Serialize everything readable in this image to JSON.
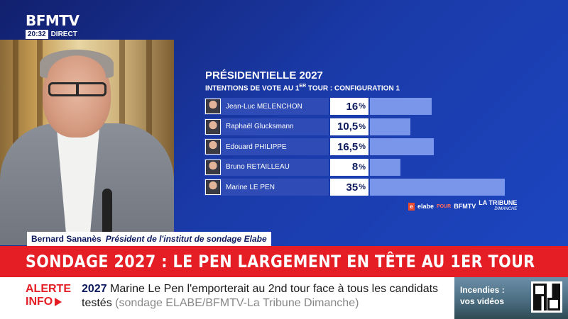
{
  "logo": {
    "brand": "BFMTV",
    "time": "20:32",
    "live": "DIRECT"
  },
  "chart": {
    "title": "PRÉSIDENTIELLE 2027",
    "subtitle_pre": "INTENTIONS DE VOTE AU 1",
    "subtitle_sup": "ER",
    "subtitle_post": " TOUR : CONFIGURATION 1",
    "credits": {
      "elabe": "elabe",
      "pour": "POUR",
      "bfmtv": "BFMTV",
      "tribune": "LA TRIBUNE",
      "dimanche": "DIMANCHE"
    }
  },
  "chart_data": {
    "type": "bar",
    "title": "PRÉSIDENTIELLE 2027",
    "subtitle": "INTENTIONS DE VOTE AU 1ER TOUR : CONFIGURATION 1",
    "categories": [
      "Jean-Luc MELENCHON",
      "Raphaël Glucksmann",
      "Edouard PHILIPPE",
      "Bruno RETAILLEAU",
      "Marine LE PEN"
    ],
    "values": [
      16,
      10.5,
      16.5,
      8,
      35
    ],
    "labels": [
      "16",
      "10,5",
      "16,5",
      "8",
      "35"
    ],
    "unit": "%",
    "orientation": "horizontal",
    "colors": {
      "bar": "#7a96ea",
      "name_cell": "#2f4bb5"
    }
  },
  "speaker": {
    "name": "Bernard Sananès",
    "role": "Président de l'institut de sondage Elabe"
  },
  "headline": "SONDAGE 2027 : LE PEN LARGEMENT EN TÊTE AU 1ER TOUR",
  "ticker": {
    "alerte": "ALERTE",
    "info": "INFO",
    "year": "2027",
    "text": "Marine Le Pen l'emporterait au 2nd tour face à tous les candidats testés",
    "source": "(sondage ELABE/BFMTV-La Tribune Dimanche)"
  },
  "promo": {
    "line1": "Incendies :",
    "line2": "vos vidéos"
  },
  "colors": {
    "headline_red": "#e51e25",
    "navy": "#0d1b5e",
    "background_blue": "#1a3aa8"
  }
}
